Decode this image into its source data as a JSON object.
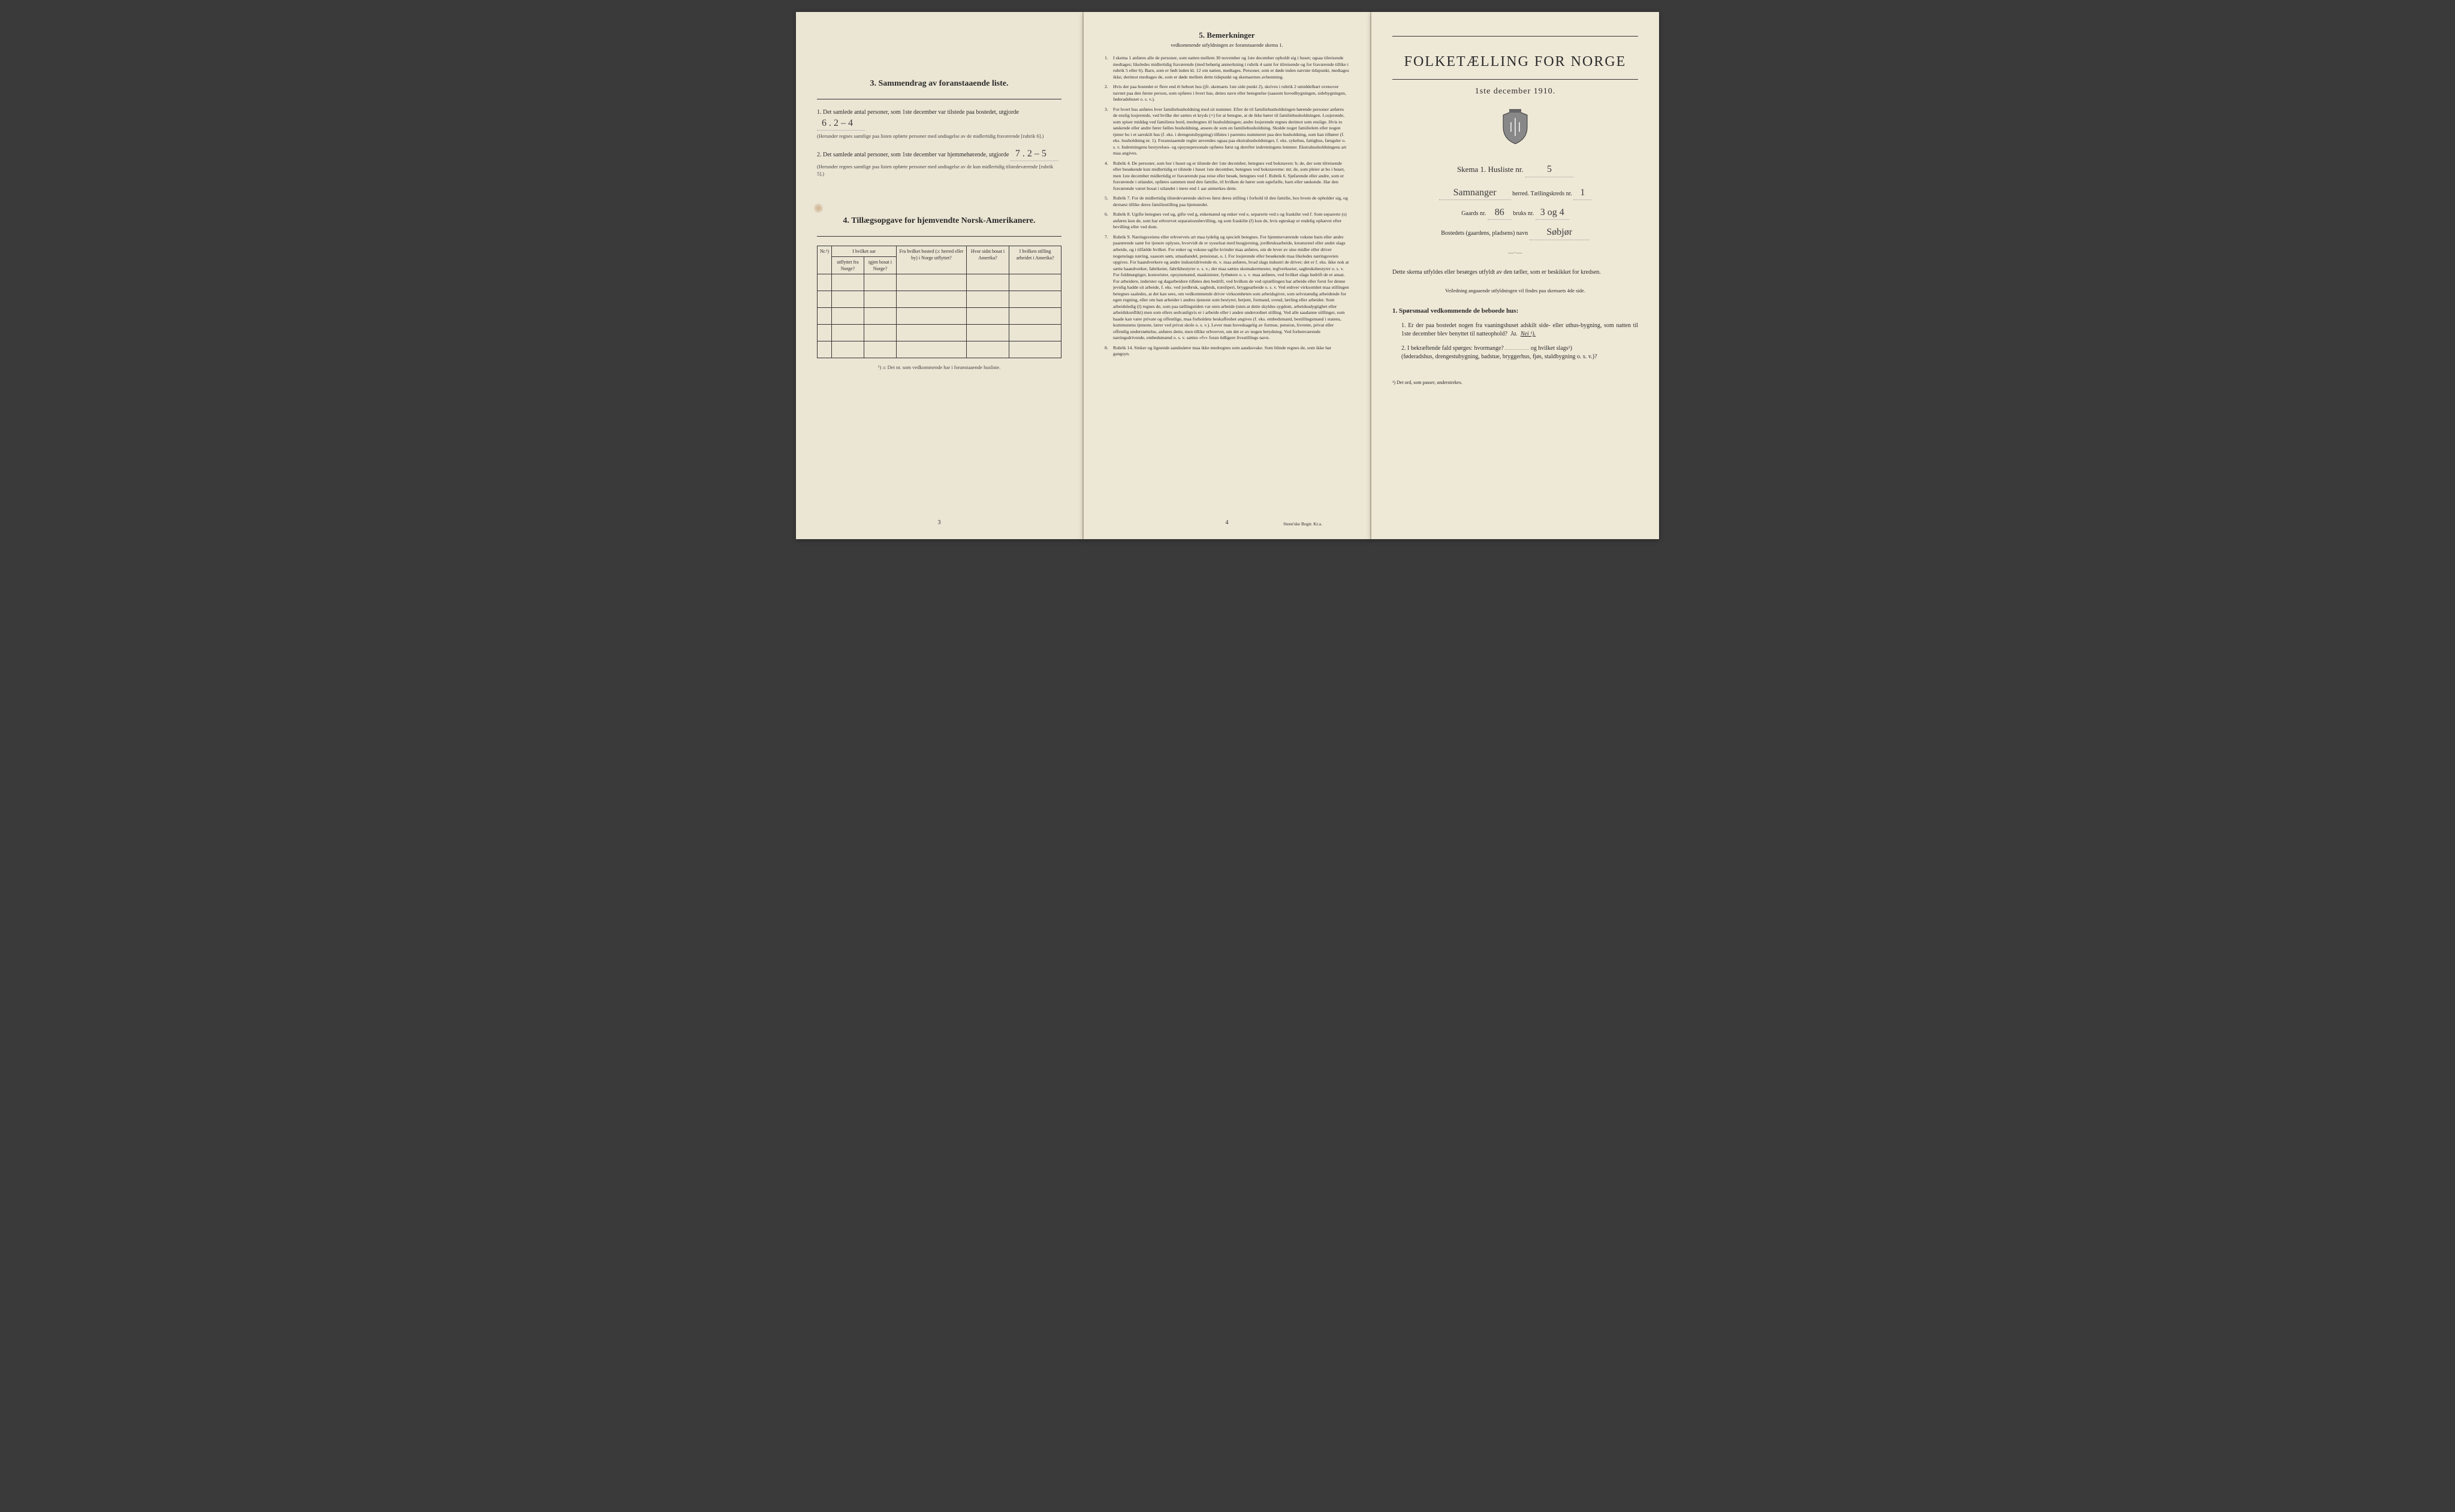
{
  "colors": {
    "page_bg": "#ebe5d4",
    "text": "#2a2a2a",
    "border": "#333333",
    "handwriting": "#3a3a3a"
  },
  "page1": {
    "section3": {
      "title": "3.   Sammendrag av foranstaaende liste.",
      "q1": {
        "num": "1.",
        "text": "Det samlede antal personer, som 1ste december var tilstede paa bostedet, utgjorde",
        "handwritten": "6 . 2 – 4",
        "note": "(Herunder regnes samtlige paa listen opførte personer med undtagelse av de midlertidig fraværende [rubrik 6].)"
      },
      "q2": {
        "num": "2.",
        "text": "Det samlede antal personer, som 1ste december var hjemmehørende, utgjorde",
        "handwritten": "7 . 2 – 5",
        "note": "(Herunder regnes samtlige paa listen opførte personer med undtagelse av de kun midlertidig tilstedeværende [rubrik 5].)"
      }
    },
    "section4": {
      "title": "4.  Tillægsopgave for hjemvendte Norsk-Amerikanere.",
      "headers": {
        "c1": "Nr.¹)",
        "c2a": "I hvilket aar",
        "c2b": "utflyttet fra Norge?",
        "c2c": "igjen bosat i Norge?",
        "c3": "Fra hvilket bosted (ɔ: herred eller by) i Norge utflyttet?",
        "c4": "Hvor sidst bosat i Amerika?",
        "c5": "I hvilken stilling arbeidet i Amerika?"
      },
      "rows": 5,
      "footnote": "¹) ɔ: Det nr. som vedkommende har i foranstaaende husliste."
    },
    "page_number": "3"
  },
  "page2": {
    "title": "5.   Bemerkninger",
    "subtitle": "vedkommende utfyldningen av foranstaaende skema 1.",
    "items": [
      {
        "n": "1.",
        "t": "I skema 1 anføres alle de personer, som natten mellem 30 november og 1ste december opholdt sig i huset; ogsaa tilreisende medtages; likeledes midlertidig fraværende (med behørig anmerkning i rubrik 4 samt for tilreisende og for fraværende tillike i rubrik 5 eller 6). Barn, som er født inden kl. 12 om natten, medtages. Personer, som er døde inden nævnte tidspunkt, medtages ikke; derimot medtages de, som er døde mellem dette tidspunkt og skemaernes avhentning."
      },
      {
        "n": "2.",
        "t": "Hvis der paa bostedet er flere end ét beboet hus (jfr. skemaets 1ste side punkt 2), skrives i rubrik 2 umiddelbart ovenover navnet paa den første person, som opføres i hvert hus, dettes navn eller betegnelse (saasom hovedbygningen, sidebygningen, føderadshuset o. s. v.)."
      },
      {
        "n": "3.",
        "t": "For hvert hus anføres hver familiehusholdning med sit nummer. Efter de til familiehusholdningen hørende personer anføres de enslig losjerende, ved hvilke der sættes et kryds (×) for at betegne, at de ikke hører til familiehusholdningen. Losjerende, som spiser middag ved familiens bord, medregnes til husholdningen; andre losjerende regnes derimot som enslige. Hvis to søskende eller andre fører fælles husholdning, ansees de som en familiehusholdning. Skulde noget familielem eller nogen tjener bo i et særskilt hus (f. eks. i drengestubygning) tilføies i parentes nummeret paa den husholdning, som han tilhører (f. eks. husholdning nr. 1).\n   Foranstaaende regler anvendes ogsaa paa ekstrahusholdninger, f. eks. sykehus, fattighus, fængsler o. s. v. Indretningens bestyrelses- og opsynspersonale opføres først og derefter indretningens lemmer. Ekstrahusholdningens art maa angives."
      },
      {
        "n": "4.",
        "t": "Rubrik 4. De personer, som bor i huset og er tilstede der 1ste december, betegnes ved bokstaven: b; de, der som tilreisende eller besøkende kun midlertidig er tilstede i huset 1ste december, betegnes ved bokstaverne: mt; de, som pleier at bo i huset, men 1ste december midlertidig er fraværende paa reise eller besøk, betegnes ved f.\n   Rubrik 6. Sjøfarende eller andre, som er fraværende i utlandet, opføres sammen med den familie, til hvilken de hører som egtefælle, barn eller søskende.\n   Har den fraværende været bosat i utlandet i mere end 1 aar anmerkes dette."
      },
      {
        "n": "5.",
        "t": "Rubrik 7. For de midlertidig tilstedeværende skrives først deres stilling i forhold til den familie, hos hvem de opholder sig, og dernæst tillike deres familiestilling paa hjemstedet."
      },
      {
        "n": "6.",
        "t": "Rubrik 8. Ugifte betegnes ved ug, gifte ved g, enkemænd og enker ved e, separerte ved s og fraskilte ved f. Som separerte (s) anføres kun de, som har erhvervet separationsbevilling, og som fraskilte (f) kun de, hvis egteskap er endelig ophævet efter bevilling eller ved dom."
      },
      {
        "n": "7.",
        "t": "Rubrik 9. Næringsveiens eller erhvervets art maa tydelig og specielt betegnes.\n   For hjemmeværende voksne barn eller andre paarørende samt for tjenere oplyses, hvorvidt de er sysselsat med husgjerning, jordbruksarbeide, kreaturstel eller andet slags arbeide, og i tilfælde hvilket. For enker og voksne ugifte kvinder maa anføres, om de lever av sine midler eller driver nogenslags næring, saasom søm, smaahandel, pensionat, o. l.\n   For losjerende eller besøkende maa likeledes næringsveien opgives.\n   For haandverkere og andre industridrivende m. v. maa anføres, hvad slags industri de driver; det er f. eks. ikke nok at sætte haandverker, fabrikeier, fabrikbestyrer o. s. v.; der maa sættes skomakermester, teglverkseier, sagbruksbestyrer o. s. v.\n   For fuldmægtiger, kontorister, opsynsmænd, maskinister, fyrbøtere o. s. v. maa anføres, ved hvilket slags bedrift de er ansat.\n   For arbeidere, inderster og dagarbeidere tilføies den bedrift, ved hvilken de ved optællingen har arbeide eller forut for denne jevnlig hadde sit arbeide, f. eks. ved jordbruk, sagbruk, træsliperi, bryggearbeide o. s. v.\n   Ved enhver virksomhet maa stillingen betegnes saaledes, at det kan sees, om vedkommende driver virksomheten som arbeidsgiver, som selvstændig arbeidende for egen regning, eller om han arbeider i andres tjeneste som bestyrer, betjent, formand, svend, lærling eller arbeider.\n   Som arbeidsledig (l) regnes de, som paa tællingstiden var uten arbeide (uten at dette skyldes sygdom, arbeidsudygtighet eller arbeidskonflikt) men som ellers sedvanligvis er i arbeide eller i anden underordnet stilling.\n   Ved alle saadanne stillinger, som baade kan være private og offentlige, maa forholdets beskaffenhet angives (f. eks. embedsmand, bestillingsmand i statens, kommunens tjeneste, lærer ved privat skole o. s. v.).\n   Lever man hovedsagelig av formue, pension, livrente, privat eller offentlig understøttelse, anføres dette, men tillike erhvervet, om det er av nogen betydning.\n   Ved forhenværende næringsdrivende, embedsmænd o. s. v. sættes «fv» foran tidligere livsstillings navn."
      },
      {
        "n": "8.",
        "t": "Rubrik 14. Sinker og lignende aandssløve maa ikke medregnes som aandssvake.\n   Som blinde regnes de, som ikke har gangsyn."
      }
    ],
    "page_number": "4",
    "printer": "Steen'ske Bogtr.   Kr.a."
  },
  "page3": {
    "main_title": "FOLKETÆLLING FOR NORGE",
    "date": "1ste december 1910.",
    "skema": {
      "label": "Skema 1.  Husliste nr.",
      "value": "5"
    },
    "herred": {
      "value": "Samnanger",
      "label": "herred.  Tællingskreds nr.",
      "kreds": "1"
    },
    "gaard": {
      "label1": "Gaards nr.",
      "gnr": "86",
      "label2": "bruks nr.",
      "bnr": "3 og 4"
    },
    "bosted": {
      "label": "Bostedets (gaardens, pladsens) navn",
      "value": "Søbjør"
    },
    "instruction": "Dette skema utfyldes eller besørges utfyldt av den tæller, som er beskikket for kredsen.",
    "instruction_sub": "Veiledning angaaende utfyldningen vil findes paa skemaets 4de side.",
    "q1": {
      "title": "1. Spørsmaal vedkommende de beboede hus:",
      "item1": {
        "num": "1.",
        "text": "Er der paa bostedet nogen fra vaaningshuset adskilt side- eller uthus-bygning, som natten til 1ste december blev benyttet til natteophold?",
        "ja": "Ja.",
        "nei": "Nei ¹)."
      },
      "item2": {
        "num": "2.",
        "text_a": "I bekræftende fald spørges: hvormange?",
        "text_b": "og hvilket slags¹)",
        "text_c": "(føderadshus, drengestubygning, badstue, bryggerhus, fjøs, staldbygning o. s. v.)?"
      }
    },
    "footnote": "¹) Det ord, som passer, understrekes."
  }
}
